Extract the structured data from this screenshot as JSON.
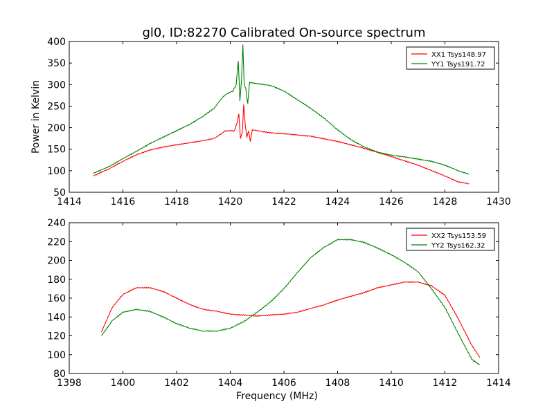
{
  "title": "gl0, ID:82270 Calibrated On-source spectrum",
  "chart_data": [
    {
      "type": "line",
      "title": "gl0, ID:82270 Calibrated On-source spectrum",
      "xlabel": "",
      "ylabel": "Power in Kelvin",
      "xlim": [
        1414,
        1430
      ],
      "ylim": [
        50,
        400
      ],
      "xticks": [
        "1414",
        "1416",
        "1418",
        "1420",
        "1422",
        "1424",
        "1426",
        "1428",
        "1430"
      ],
      "yticks": [
        "50",
        "100",
        "150",
        "200",
        "250",
        "300",
        "350",
        "400"
      ],
      "grid": false,
      "legend": "top-right",
      "series": [
        {
          "name": "XX1 Tsys148.97",
          "color": "#ff0000",
          "points": [
            [
              1414.9,
              88
            ],
            [
              1415.5,
              105
            ],
            [
              1416.0,
              122
            ],
            [
              1416.5,
              137
            ],
            [
              1417.0,
              148
            ],
            [
              1417.5,
              155
            ],
            [
              1418.0,
              160
            ],
            [
              1418.5,
              165
            ],
            [
              1419.0,
              170
            ],
            [
              1419.4,
              175
            ],
            [
              1419.6,
              183
            ],
            [
              1419.8,
              192
            ],
            [
              1420.0,
              193
            ],
            [
              1420.15,
              192
            ],
            [
              1420.25,
              210
            ],
            [
              1420.32,
              232
            ],
            [
              1420.38,
              175
            ],
            [
              1420.45,
              190
            ],
            [
              1420.5,
              255
            ],
            [
              1420.56,
              205
            ],
            [
              1420.62,
              178
            ],
            [
              1420.68,
              192
            ],
            [
              1420.75,
              168
            ],
            [
              1420.82,
              195
            ],
            [
              1421.0,
              193
            ],
            [
              1421.5,
              188
            ],
            [
              1422.0,
              186
            ],
            [
              1423.0,
              180
            ],
            [
              1424.0,
              168
            ],
            [
              1425.0,
              152
            ],
            [
              1426.0,
              133
            ],
            [
              1427.0,
              113
            ],
            [
              1428.0,
              88
            ],
            [
              1428.5,
              74
            ],
            [
              1428.9,
              70
            ]
          ]
        },
        {
          "name": "YY1 Tsys191.72",
          "color": "#008000",
          "points": [
            [
              1414.9,
              94
            ],
            [
              1415.5,
              110
            ],
            [
              1416.0,
              128
            ],
            [
              1416.5,
              145
            ],
            [
              1417.0,
              163
            ],
            [
              1417.5,
              178
            ],
            [
              1418.0,
              193
            ],
            [
              1418.5,
              208
            ],
            [
              1419.0,
              227
            ],
            [
              1419.4,
              245
            ],
            [
              1419.7,
              270
            ],
            [
              1419.9,
              280
            ],
            [
              1420.1,
              285
            ],
            [
              1420.22,
              300
            ],
            [
              1420.3,
              355
            ],
            [
              1420.36,
              262
            ],
            [
              1420.42,
              310
            ],
            [
              1420.47,
              392
            ],
            [
              1420.52,
              300
            ],
            [
              1420.58,
              290
            ],
            [
              1420.65,
              255
            ],
            [
              1420.72,
              305
            ],
            [
              1421.0,
              302
            ],
            [
              1421.5,
              298
            ],
            [
              1422.0,
              285
            ],
            [
              1422.5,
              265
            ],
            [
              1423.0,
              245
            ],
            [
              1423.5,
              222
            ],
            [
              1424.0,
              195
            ],
            [
              1424.5,
              172
            ],
            [
              1425.0,
              155
            ],
            [
              1425.5,
              143
            ],
            [
              1426.0,
              136
            ],
            [
              1426.5,
              132
            ],
            [
              1427.0,
              127
            ],
            [
              1427.5,
              122
            ],
            [
              1428.0,
              113
            ],
            [
              1428.5,
              100
            ],
            [
              1428.9,
              92
            ]
          ]
        }
      ]
    },
    {
      "type": "line",
      "title": "",
      "xlabel": "Frequency (MHz)",
      "ylabel": "",
      "xlim": [
        1398,
        1414
      ],
      "ylim": [
        80,
        240
      ],
      "xticks": [
        "1398",
        "1400",
        "1402",
        "1404",
        "1406",
        "1408",
        "1410",
        "1412",
        "1414"
      ],
      "yticks": [
        "80",
        "100",
        "120",
        "140",
        "160",
        "180",
        "200",
        "220",
        "240"
      ],
      "grid": false,
      "legend": "top-right",
      "series": [
        {
          "name": "XX2 Tsys153.59",
          "color": "#ff0000",
          "points": [
            [
              1399.2,
              124
            ],
            [
              1399.6,
              150
            ],
            [
              1400.0,
              164
            ],
            [
              1400.5,
              171
            ],
            [
              1401.0,
              171
            ],
            [
              1401.5,
              167
            ],
            [
              1402.0,
              160
            ],
            [
              1402.5,
              153
            ],
            [
              1403.0,
              148
            ],
            [
              1403.5,
              146
            ],
            [
              1404.0,
              143
            ],
            [
              1404.5,
              142
            ],
            [
              1405.0,
              141
            ],
            [
              1405.5,
              142
            ],
            [
              1406.0,
              143
            ],
            [
              1406.5,
              145
            ],
            [
              1407.0,
              149
            ],
            [
              1407.5,
              153
            ],
            [
              1408.0,
              158
            ],
            [
              1408.5,
              162
            ],
            [
              1409.0,
              166
            ],
            [
              1409.5,
              171
            ],
            [
              1410.0,
              174
            ],
            [
              1410.5,
              177
            ],
            [
              1411.0,
              177
            ],
            [
              1411.5,
              173
            ],
            [
              1412.0,
              163
            ],
            [
              1412.5,
              138
            ],
            [
              1413.0,
              110
            ],
            [
              1413.3,
              97
            ]
          ]
        },
        {
          "name": "YY2 Tsys162.32",
          "color": "#008000",
          "points": [
            [
              1399.2,
              120
            ],
            [
              1399.6,
              136
            ],
            [
              1400.0,
              145
            ],
            [
              1400.5,
              148
            ],
            [
              1401.0,
              146
            ],
            [
              1401.5,
              140
            ],
            [
              1402.0,
              133
            ],
            [
              1402.5,
              128
            ],
            [
              1403.0,
              125
            ],
            [
              1403.5,
              125
            ],
            [
              1404.0,
              128
            ],
            [
              1404.5,
              135
            ],
            [
              1405.0,
              145
            ],
            [
              1405.5,
              156
            ],
            [
              1406.0,
              170
            ],
            [
              1406.5,
              187
            ],
            [
              1407.0,
              203
            ],
            [
              1407.5,
              214
            ],
            [
              1408.0,
              222
            ],
            [
              1408.5,
              222
            ],
            [
              1409.0,
              219
            ],
            [
              1409.5,
              213
            ],
            [
              1410.0,
              206
            ],
            [
              1410.5,
              198
            ],
            [
              1411.0,
              188
            ],
            [
              1411.5,
              170
            ],
            [
              1412.0,
              150
            ],
            [
              1412.5,
              122
            ],
            [
              1413.0,
              95
            ],
            [
              1413.3,
              89
            ]
          ]
        }
      ]
    }
  ]
}
